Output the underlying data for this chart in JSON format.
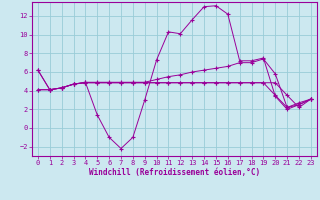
{
  "xlabel": "Windchill (Refroidissement éolien,°C)",
  "bg_color": "#cce8f0",
  "grid_color": "#99ccd8",
  "line_color": "#990099",
  "x_hours": [
    0,
    1,
    2,
    3,
    4,
    5,
    6,
    7,
    8,
    9,
    10,
    11,
    12,
    13,
    14,
    15,
    16,
    17,
    18,
    19,
    20,
    21,
    22,
    23
  ],
  "series1": [
    6.2,
    4.1,
    4.3,
    4.7,
    4.9,
    1.4,
    -1.0,
    -2.2,
    -1.0,
    3.0,
    7.3,
    10.3,
    10.1,
    11.6,
    13.0,
    13.1,
    12.2,
    7.2,
    7.2,
    7.5,
    3.4,
    2.0,
    2.5,
    3.1
  ],
  "series2": [
    4.1,
    4.1,
    4.3,
    4.7,
    4.85,
    4.85,
    4.85,
    4.85,
    4.85,
    4.85,
    4.85,
    4.85,
    4.85,
    4.85,
    4.85,
    4.85,
    4.85,
    4.85,
    4.85,
    4.85,
    4.85,
    3.5,
    2.2,
    3.1
  ],
  "series3": [
    4.1,
    4.1,
    4.3,
    4.7,
    4.85,
    4.85,
    4.85,
    4.85,
    4.85,
    4.85,
    4.85,
    4.85,
    4.85,
    4.85,
    4.85,
    4.85,
    4.85,
    4.85,
    4.85,
    4.85,
    3.5,
    2.2,
    2.5,
    3.1
  ],
  "series4": [
    6.2,
    4.1,
    4.3,
    4.7,
    4.9,
    4.9,
    4.9,
    4.9,
    4.9,
    4.9,
    5.2,
    5.5,
    5.7,
    6.0,
    6.2,
    6.4,
    6.6,
    7.0,
    7.0,
    7.4,
    5.8,
    2.2,
    2.7,
    3.1
  ],
  "ylim": [
    -3.0,
    13.5
  ],
  "yticks": [
    -2,
    0,
    2,
    4,
    6,
    8,
    10,
    12
  ],
  "xticks": [
    0,
    1,
    2,
    3,
    4,
    5,
    6,
    7,
    8,
    9,
    10,
    11,
    12,
    13,
    14,
    15,
    16,
    17,
    18,
    19,
    20,
    21,
    22,
    23
  ]
}
